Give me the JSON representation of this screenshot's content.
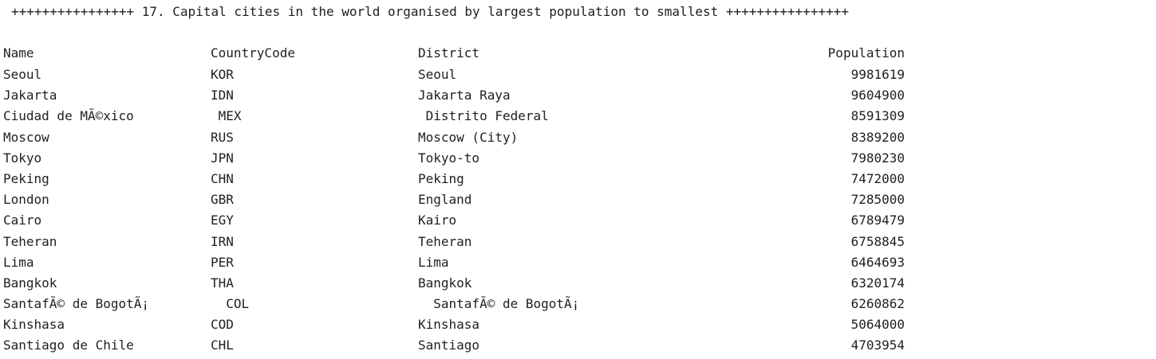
{
  "title": "++++++++++++++++ 17. Capital cities in the world organised by largest population to smallest ++++++++++++++++",
  "header": {
    "name": "Name",
    "code": "CountryCode",
    "district": "District",
    "population": "Population"
  },
  "rows": [
    {
      "name": "Seoul",
      "code": "KOR",
      "district": "Seoul",
      "population": "9981619"
    },
    {
      "name": "Jakarta",
      "code": "IDN",
      "district": "Jakarta Raya",
      "population": "9604900"
    },
    {
      "name": "Ciudad de MÃ©xico",
      "code": " MEX",
      "district": " Distrito Federal",
      "population": " 8591309"
    },
    {
      "name": "Moscow",
      "code": "RUS",
      "district": "Moscow (City)",
      "population": "8389200"
    },
    {
      "name": "Tokyo",
      "code": "JPN",
      "district": "Tokyo-to",
      "population": "7980230"
    },
    {
      "name": "Peking",
      "code": "CHN",
      "district": "Peking",
      "population": "7472000"
    },
    {
      "name": "London",
      "code": "GBR",
      "district": "England",
      "population": "7285000"
    },
    {
      "name": "Cairo",
      "code": "EGY",
      "district": "Kairo",
      "population": "6789479"
    },
    {
      "name": "Teheran",
      "code": "IRN",
      "district": "Teheran",
      "population": "6758845"
    },
    {
      "name": "Lima",
      "code": "PER",
      "district": "Lima",
      "population": "6464693"
    },
    {
      "name": "Bangkok",
      "code": "THA",
      "district": "Bangkok",
      "population": "6320174"
    },
    {
      "name": "SantafÃ© de BogotÃ¡",
      "code": "  COL",
      "district": "  SantafÃ© de BogotÃ¡",
      "population": "  6260862"
    },
    {
      "name": "Kinshasa",
      "code": "COD",
      "district": "Kinshasa",
      "population": "5064000"
    },
    {
      "name": "Santiago de Chile",
      "code": "CHL",
      "district": "Santiago",
      "population": "4703954"
    }
  ]
}
